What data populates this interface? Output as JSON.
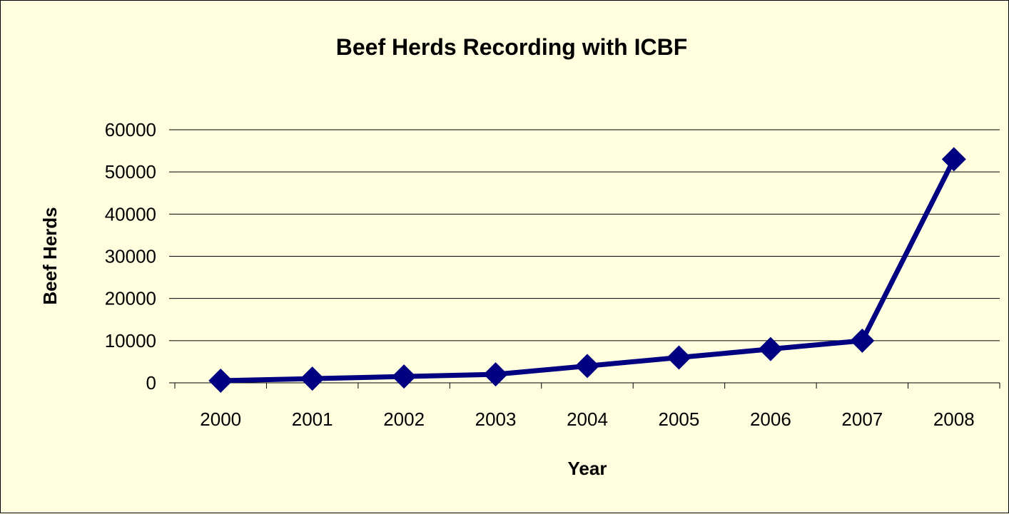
{
  "chart_data": {
    "type": "line",
    "title": "Beef Herds Recording with ICBF",
    "xlabel": "Year",
    "ylabel": "Beef Herds",
    "categories": [
      "2000",
      "2001",
      "2002",
      "2003",
      "2004",
      "2005",
      "2006",
      "2007",
      "2008"
    ],
    "series": [
      {
        "values": [
          500,
          1000,
          1500,
          2000,
          4000,
          6000,
          8000,
          10000,
          53000
        ],
        "color": "#000080",
        "marker": "diamond"
      }
    ],
    "ylim": [
      0,
      60000
    ],
    "yticks": [
      "0",
      "10000",
      "20000",
      "30000",
      "40000",
      "50000",
      "60000"
    ],
    "grid": true,
    "legend": "none",
    "background": "#ffffe0"
  }
}
